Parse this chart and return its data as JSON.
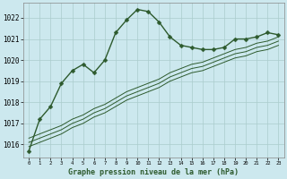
{
  "title": "Graphe pression niveau de la mer (hPa)",
  "bg_color": "#cce8ee",
  "grid_color": "#aacccc",
  "line_color": "#2d5a2d",
  "x_ticks": [
    0,
    1,
    2,
    3,
    4,
    5,
    6,
    7,
    8,
    9,
    10,
    11,
    12,
    13,
    14,
    15,
    16,
    17,
    18,
    19,
    20,
    21,
    22,
    23
  ],
  "ylim": [
    1015.4,
    1022.7
  ],
  "y_ticks": [
    1016,
    1017,
    1018,
    1019,
    1020,
    1021,
    1022
  ],
  "series": [
    {
      "x": [
        0,
        1,
        2,
        3,
        4,
        5,
        6,
        7,
        8,
        9,
        10,
        11,
        12,
        13,
        14,
        15,
        16,
        17,
        18,
        19,
        20,
        21,
        22,
        23
      ],
      "y": [
        1015.7,
        1017.2,
        1017.8,
        1018.9,
        1019.5,
        1019.8,
        1019.4,
        1020.0,
        1021.3,
        1021.9,
        1022.4,
        1022.3,
        1021.8,
        1021.1,
        1020.7,
        1020.6,
        1020.5,
        1020.5,
        1020.6,
        1021.0,
        1021.0,
        1021.1,
        1021.3,
        1021.2
      ],
      "marker": "D",
      "markersize": 2.5,
      "lw": 1.0
    },
    {
      "x": [
        0,
        1,
        2,
        3,
        4,
        5,
        6,
        7,
        8,
        9,
        10,
        11,
        12,
        13,
        14,
        15,
        16,
        17,
        18,
        19,
        20,
        21,
        22,
        23
      ],
      "y": [
        1016.3,
        1016.5,
        1016.7,
        1016.9,
        1017.2,
        1017.4,
        1017.7,
        1017.9,
        1018.2,
        1018.5,
        1018.7,
        1018.9,
        1019.1,
        1019.4,
        1019.6,
        1019.8,
        1019.9,
        1020.1,
        1020.3,
        1020.5,
        1020.6,
        1020.8,
        1020.9,
        1021.1
      ],
      "marker": null,
      "lw": 0.7
    },
    {
      "x": [
        0,
        1,
        2,
        3,
        4,
        5,
        6,
        7,
        8,
        9,
        10,
        11,
        12,
        13,
        14,
        15,
        16,
        17,
        18,
        19,
        20,
        21,
        22,
        23
      ],
      "y": [
        1016.1,
        1016.3,
        1016.5,
        1016.7,
        1017.0,
        1017.2,
        1017.5,
        1017.7,
        1018.0,
        1018.3,
        1018.5,
        1018.7,
        1018.9,
        1019.2,
        1019.4,
        1019.6,
        1019.7,
        1019.9,
        1020.1,
        1020.3,
        1020.4,
        1020.6,
        1020.7,
        1020.9
      ],
      "marker": null,
      "lw": 0.7
    },
    {
      "x": [
        0,
        1,
        2,
        3,
        4,
        5,
        6,
        7,
        8,
        9,
        10,
        11,
        12,
        13,
        14,
        15,
        16,
        17,
        18,
        19,
        20,
        21,
        22,
        23
      ],
      "y": [
        1015.9,
        1016.1,
        1016.3,
        1016.5,
        1016.8,
        1017.0,
        1017.3,
        1017.5,
        1017.8,
        1018.1,
        1018.3,
        1018.5,
        1018.7,
        1019.0,
        1019.2,
        1019.4,
        1019.5,
        1019.7,
        1019.9,
        1020.1,
        1020.2,
        1020.4,
        1020.5,
        1020.7
      ],
      "marker": null,
      "lw": 0.7
    }
  ]
}
